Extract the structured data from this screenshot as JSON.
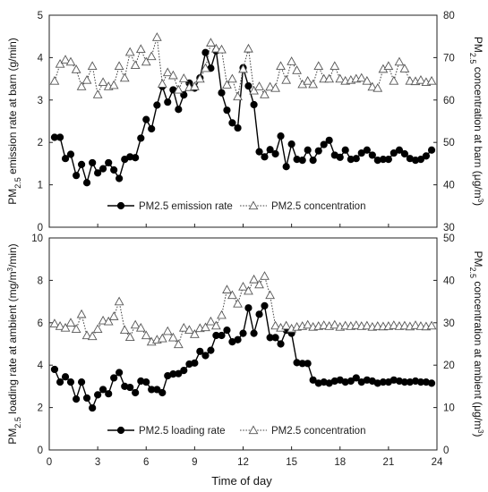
{
  "xaxis": {
    "label": "Time of day",
    "ticks": [
      0,
      3,
      6,
      9,
      12,
      15,
      18,
      21,
      24
    ],
    "range": [
      0,
      24
    ]
  },
  "chart_data": [
    {
      "type": "line",
      "panel": "top",
      "ylabel_left": "PM2.5 emission rate at barn (g/min)",
      "ylabel_left_parts": {
        "pre": "PM",
        "sub": "2.5",
        "post": " emission rate at barn (g/min)"
      },
      "ylabel_right": "PM2.5 concentration at barn (μg/m3)",
      "ylabel_right_parts": {
        "pre": "PM",
        "sub": "2.5",
        "post": " concentration at barn (μg/m",
        "sup": "3",
        "end": ")"
      },
      "ylim_left": [
        0,
        5
      ],
      "ylim_right": [
        30,
        80
      ],
      "yticks_left": [
        0,
        1,
        2,
        3,
        4,
        5
      ],
      "yticks_right": [
        30,
        40,
        50,
        60,
        70,
        80
      ],
      "legend": {
        "placement": "bottom-center",
        "entries": [
          "PM2.5 emission rate",
          "PM2.5 concentration"
        ]
      },
      "series": [
        {
          "name": "PM2.5 emission rate",
          "axis": "left",
          "marker": "filled-circle",
          "line": "solid",
          "x": [
            0.33,
            0.67,
            1.0,
            1.33,
            1.67,
            2.0,
            2.33,
            2.67,
            3.0,
            3.33,
            3.67,
            4.0,
            4.33,
            4.67,
            5.0,
            5.33,
            5.67,
            6.0,
            6.33,
            6.67,
            7.0,
            7.33,
            7.67,
            8.0,
            8.33,
            8.67,
            9.0,
            9.33,
            9.67,
            10.0,
            10.33,
            10.67,
            11.0,
            11.33,
            11.67,
            12.0,
            12.33,
            12.67,
            13.0,
            13.33,
            13.67,
            14.0,
            14.33,
            14.67,
            15.0,
            15.33,
            15.67,
            16.0,
            16.33,
            16.67,
            17.0,
            17.33,
            17.67,
            18.0,
            18.33,
            18.67,
            19.0,
            19.33,
            19.67,
            20.0,
            20.33,
            20.67,
            21.0,
            21.33,
            21.67,
            22.0,
            22.33,
            22.67,
            23.0,
            23.33,
            23.67
          ],
          "y": [
            2.12,
            2.12,
            1.62,
            1.72,
            1.22,
            1.48,
            1.05,
            1.52,
            1.28,
            1.38,
            1.52,
            1.35,
            1.15,
            1.6,
            1.66,
            1.64,
            2.1,
            2.54,
            2.32,
            2.88,
            3.32,
            2.95,
            3.24,
            2.78,
            3.12,
            3.4,
            3.28,
            3.52,
            4.12,
            3.75,
            4.16,
            3.17,
            2.76,
            2.46,
            2.34,
            3.76,
            3.33,
            2.89,
            1.78,
            1.66,
            1.83,
            1.73,
            2.15,
            1.43,
            1.96,
            1.6,
            1.58,
            1.82,
            1.58,
            1.8,
            1.95,
            2.05,
            1.7,
            1.65,
            1.82,
            1.6,
            1.62,
            1.75,
            1.82,
            1.7,
            1.58,
            1.6,
            1.6,
            1.75,
            1.82,
            1.73,
            1.62,
            1.58,
            1.6,
            1.68,
            1.82
          ]
        },
        {
          "name": "PM2.5 concentration",
          "axis": "right",
          "marker": "open-triangle",
          "line": "dotted",
          "x": [
            0.33,
            0.67,
            1.0,
            1.33,
            1.67,
            2.0,
            2.33,
            2.67,
            3.0,
            3.33,
            3.67,
            4.0,
            4.33,
            4.67,
            5.0,
            5.33,
            5.67,
            6.0,
            6.33,
            6.67,
            7.0,
            7.33,
            7.67,
            8.0,
            8.33,
            8.67,
            9.0,
            9.33,
            9.67,
            10.0,
            10.33,
            10.67,
            11.0,
            11.33,
            11.67,
            12.0,
            12.33,
            12.67,
            13.0,
            13.33,
            13.67,
            14.0,
            14.33,
            14.67,
            15.0,
            15.33,
            15.67,
            16.0,
            16.33,
            16.67,
            17.0,
            17.33,
            17.67,
            18.0,
            18.33,
            18.67,
            19.0,
            19.33,
            19.67,
            20.0,
            20.33,
            20.67,
            21.0,
            21.33,
            21.67,
            22.0,
            22.33,
            22.67,
            23.0,
            23.33,
            23.67
          ],
          "y": [
            64.5,
            68.5,
            69.5,
            69,
            67.2,
            63.2,
            64.7,
            68,
            61.3,
            64.2,
            63.2,
            63.5,
            68,
            65.2,
            71.3,
            68.2,
            72,
            69,
            70.3,
            74.8,
            63.8,
            66.5,
            65.8,
            62.4,
            65.1,
            63,
            63.2,
            65,
            67.5,
            73.5,
            72.1,
            71.9,
            63.6,
            65,
            60.8,
            67.3,
            72.1,
            62.2,
            63.2,
            61.3,
            63.1,
            62.8,
            68,
            64.7,
            69.1,
            67,
            63.7,
            64.5,
            63.7,
            68,
            65,
            65,
            68,
            65,
            64.5,
            64.7,
            65,
            65.2,
            64.5,
            63.1,
            62.8,
            67.3,
            68,
            64.5,
            69,
            67.4,
            64.5,
            64.4,
            64.7,
            64.2,
            64.5
          ]
        }
      ]
    },
    {
      "type": "line",
      "panel": "bottom",
      "ylabel_left": "PM2.5 loading rate at ambient (mg/m3/min)",
      "ylabel_left_parts": {
        "pre": "PM",
        "sub": "2.5",
        "post": " loading rate at ambient (mg/m",
        "sup": "3",
        "end": "/min)"
      },
      "ylabel_right": "PM2.5 concentration at ambient (μg/m3)",
      "ylabel_right_parts": {
        "pre": "PM",
        "sub": "2.5",
        "post": " concentration at ambient (μg/m",
        "sup": "3",
        "end": ")"
      },
      "ylim_left": [
        0,
        10
      ],
      "ylim_right": [
        0,
        50
      ],
      "yticks_left": [
        0,
        2,
        4,
        6,
        8,
        10
      ],
      "yticks_right": [
        0,
        10,
        20,
        30,
        40,
        50
      ],
      "legend": {
        "placement": "bottom-center",
        "entries": [
          "PM2.5 loading rate",
          "PM2.5 concentration"
        ]
      },
      "series": [
        {
          "name": "PM2.5 loading rate",
          "axis": "left",
          "marker": "filled-circle",
          "line": "solid",
          "x": [
            0.33,
            0.67,
            1.0,
            1.33,
            1.67,
            2.0,
            2.33,
            2.67,
            3.0,
            3.33,
            3.67,
            4.0,
            4.33,
            4.67,
            5.0,
            5.33,
            5.67,
            6.0,
            6.33,
            6.67,
            7.0,
            7.33,
            7.67,
            8.0,
            8.33,
            8.67,
            9.0,
            9.33,
            9.67,
            10.0,
            10.33,
            10.67,
            11.0,
            11.33,
            11.67,
            12.0,
            12.33,
            12.67,
            13.0,
            13.33,
            13.67,
            14.0,
            14.33,
            14.67,
            15.0,
            15.33,
            15.67,
            16.0,
            16.33,
            16.67,
            17.0,
            17.33,
            17.67,
            18.0,
            18.33,
            18.67,
            19.0,
            19.33,
            19.67,
            20.0,
            20.33,
            20.67,
            21.0,
            21.33,
            21.67,
            22.0,
            22.33,
            22.67,
            23.0,
            23.33,
            23.67
          ],
          "y": [
            3.8,
            3.2,
            3.45,
            3.2,
            2.4,
            3.2,
            2.45,
            1.98,
            2.6,
            2.85,
            2.65,
            3.4,
            3.65,
            3.0,
            2.95,
            2.7,
            3.25,
            3.2,
            2.85,
            2.85,
            2.7,
            3.5,
            3.58,
            3.6,
            3.75,
            4.05,
            4.1,
            4.65,
            4.45,
            4.7,
            5.4,
            5.4,
            5.65,
            5.1,
            5.2,
            5.5,
            6.7,
            5.5,
            6.4,
            6.8,
            5.3,
            5.3,
            5.0,
            5.65,
            5.5,
            4.12,
            4.08,
            4.08,
            3.3,
            3.15,
            3.2,
            3.15,
            3.25,
            3.3,
            3.2,
            3.25,
            3.4,
            3.2,
            3.3,
            3.25,
            3.15,
            3.2,
            3.2,
            3.3,
            3.25,
            3.2,
            3.2,
            3.25,
            3.2,
            3.2,
            3.15
          ]
        },
        {
          "name": "PM2.5 concentration",
          "axis": "right",
          "marker": "open-triangle",
          "line": "dotted",
          "x": [
            0.33,
            0.67,
            1.0,
            1.33,
            1.67,
            2.0,
            2.33,
            2.67,
            3.0,
            3.33,
            3.67,
            4.0,
            4.33,
            4.67,
            5.0,
            5.33,
            5.67,
            6.0,
            6.33,
            6.67,
            7.0,
            7.33,
            7.67,
            8.0,
            8.33,
            8.67,
            9.0,
            9.33,
            9.67,
            10.0,
            10.33,
            10.67,
            11.0,
            11.33,
            11.67,
            12.0,
            12.33,
            12.67,
            13.0,
            13.33,
            13.67,
            14.0,
            14.33,
            14.67,
            15.0,
            15.33,
            15.67,
            16.0,
            16.33,
            16.67,
            17.0,
            17.33,
            17.67,
            18.0,
            18.33,
            18.67,
            19.0,
            19.33,
            19.67,
            20.0,
            20.33,
            20.67,
            21.0,
            21.33,
            21.67,
            22.0,
            22.33,
            22.67,
            23.0,
            23.33,
            23.67
          ],
          "y": [
            29.8,
            29.2,
            28.8,
            30,
            28.5,
            32,
            27,
            26.8,
            28.5,
            30.5,
            30.3,
            31.5,
            35,
            28.3,
            26.6,
            29.5,
            28.8,
            27,
            25.5,
            26,
            26.3,
            28,
            26.5,
            24.9,
            28.8,
            28.3,
            27.3,
            28.7,
            28.9,
            30.3,
            29.3,
            31.8,
            37.8,
            36.5,
            34.5,
            38.5,
            37.5,
            40.2,
            39,
            41,
            36.5,
            29.3,
            28.8,
            29.3,
            28.6,
            29,
            29.2,
            29.5,
            29,
            29.2,
            29.4,
            29.2,
            29.5,
            29,
            29.3,
            29.2,
            29.4,
            29.2,
            29.3,
            29,
            29.2,
            29.1,
            29.2,
            29.4,
            29.2,
            29.3,
            29.1,
            29.4,
            29.2,
            29.1,
            29.3
          ]
        }
      ]
    }
  ]
}
